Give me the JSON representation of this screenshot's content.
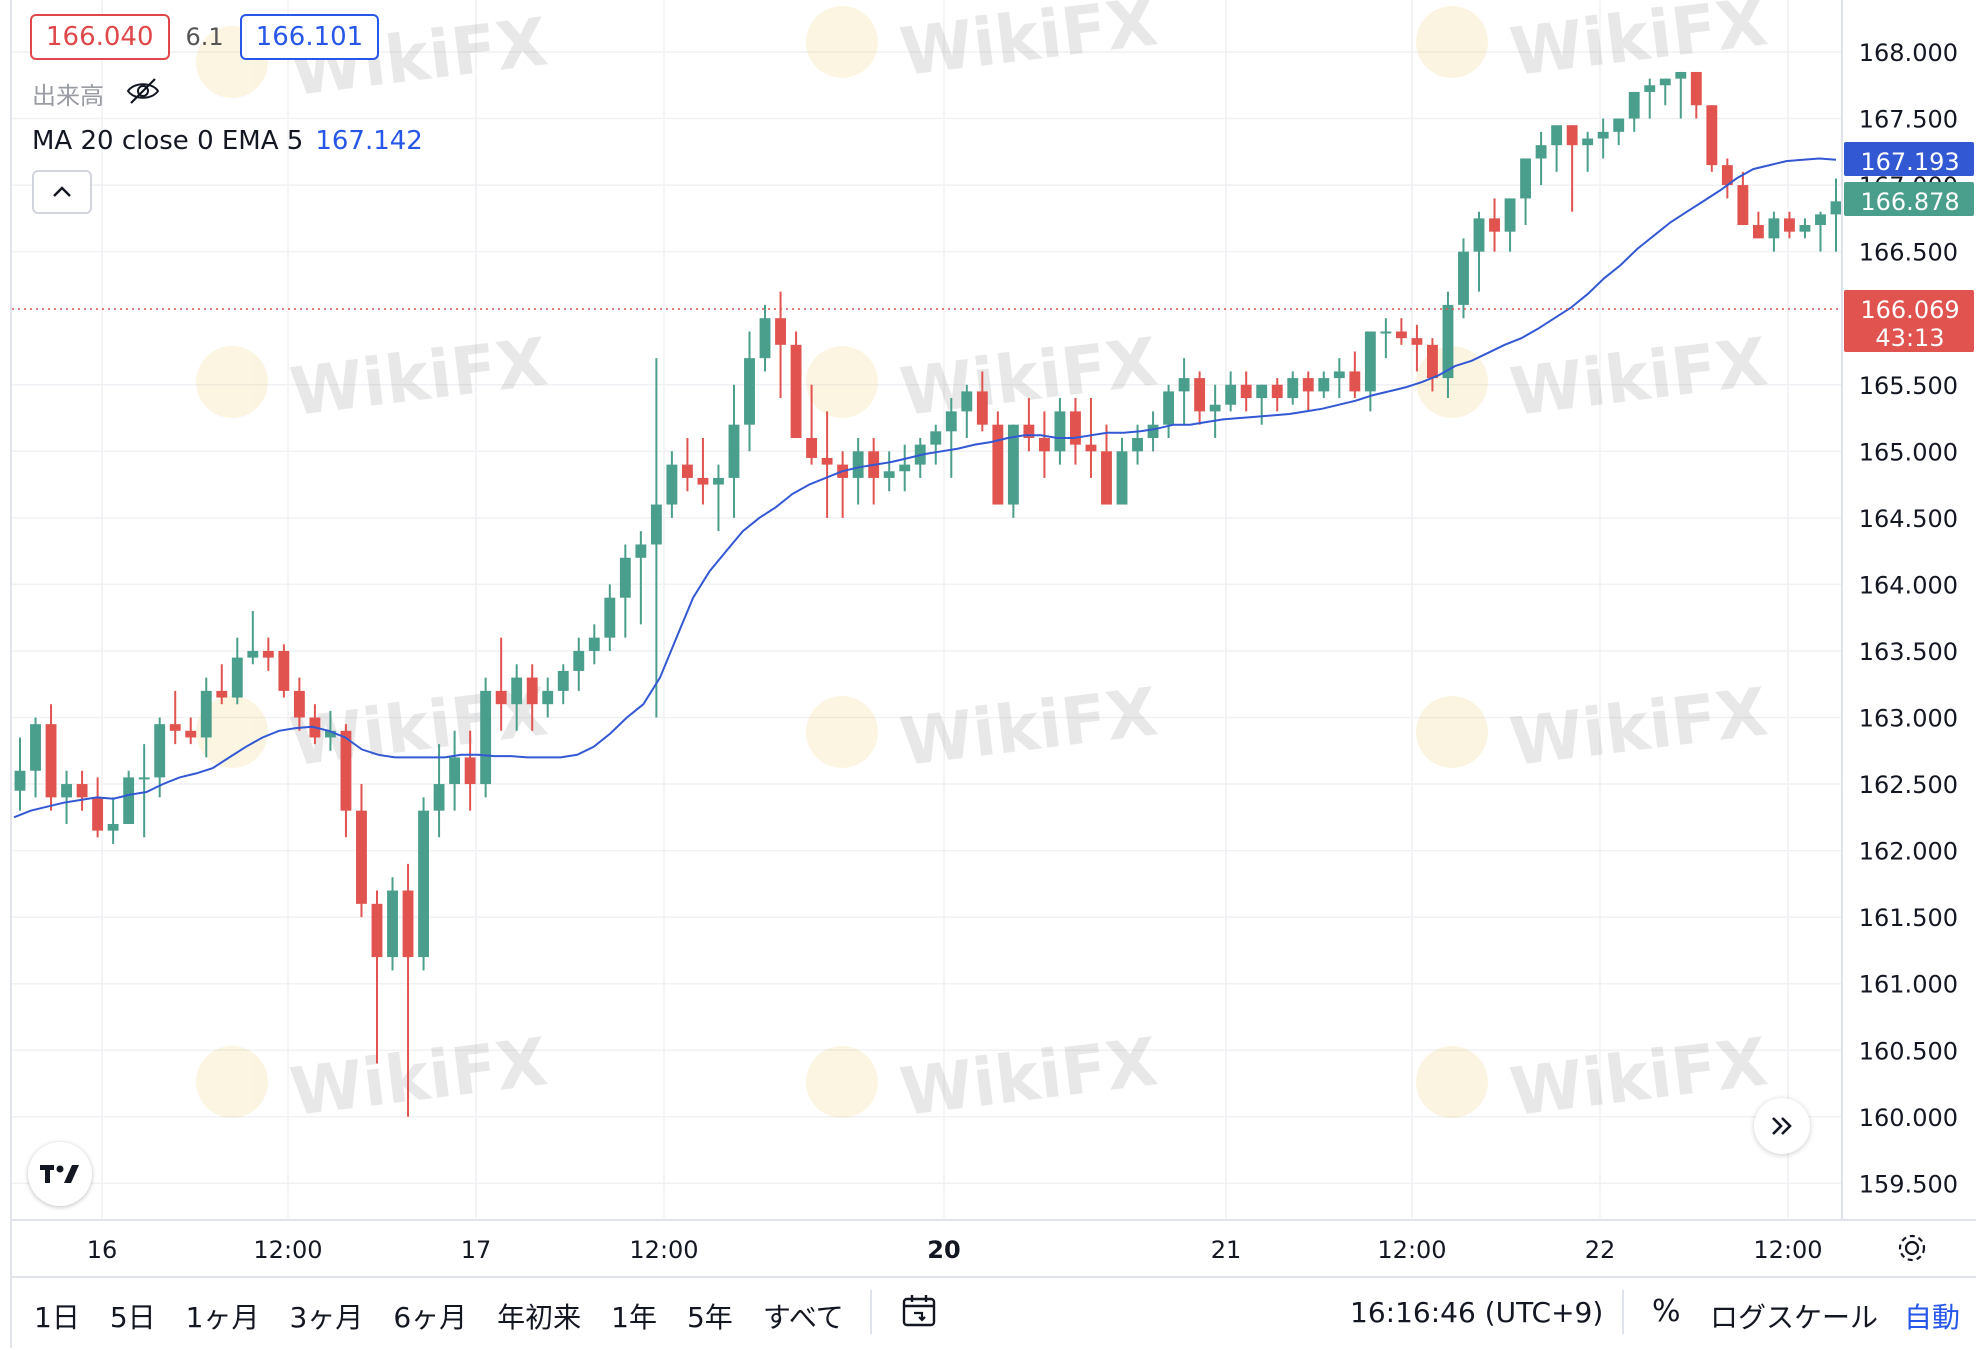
{
  "header": {
    "sell_price": "166.040",
    "spread": "6.1",
    "buy_price": "166.101",
    "volume_label": "出来高",
    "ma_label": "MA 20 close 0 EMA 5",
    "ma_value": "167.142"
  },
  "watermark": "WikiFX",
  "price_tags": {
    "ma": "167.193",
    "last": "166.878",
    "current": "166.069",
    "countdown": "43:13"
  },
  "colors": {
    "up": "#4a9e8c",
    "down": "#e0534f",
    "ma_line": "#3358d4",
    "current_line": "#e0534f",
    "ma_tag": "#3358d4",
    "last_tag": "#4a9e8c",
    "current_tag": "#e0534f"
  },
  "bottom_bar": {
    "ranges": [
      "1日",
      "5日",
      "1ヶ月",
      "3ヶ月",
      "6ヶ月",
      "年初来",
      "1年",
      "5年",
      "すべて"
    ],
    "clock": "16:16:46 (UTC+9)",
    "percent": "%",
    "log_scale": "ログスケール",
    "auto": "自動"
  },
  "chart_data": {
    "type": "candlestick",
    "ylim": [
      159.3,
      168.3
    ],
    "y_ticks": [
      "168.000",
      "167.500",
      "167.000",
      "166.500",
      "165.500",
      "165.000",
      "164.500",
      "164.000",
      "163.500",
      "163.000",
      "162.500",
      "162.000",
      "161.500",
      "161.000",
      "160.500",
      "160.000",
      "159.500"
    ],
    "x_ticks": [
      {
        "label": "16",
        "bold": false
      },
      {
        "label": "12:00",
        "bold": false
      },
      {
        "label": "17",
        "bold": false
      },
      {
        "label": "12:00",
        "bold": false
      },
      {
        "label": "20",
        "bold": true
      },
      {
        "label": "21",
        "bold": false
      },
      {
        "label": "12:00",
        "bold": false
      },
      {
        "label": "22",
        "bold": false
      },
      {
        "label": "12:00",
        "bold": false
      }
    ],
    "current_price": 166.069,
    "candles": [
      [
        162.45,
        162.85,
        162.3,
        162.6
      ],
      [
        162.6,
        163.0,
        162.4,
        162.95
      ],
      [
        162.95,
        163.1,
        162.3,
        162.4
      ],
      [
        162.4,
        162.6,
        162.2,
        162.5
      ],
      [
        162.5,
        162.6,
        162.3,
        162.4
      ],
      [
        162.4,
        162.55,
        162.1,
        162.15
      ],
      [
        162.15,
        162.4,
        162.05,
        162.2
      ],
      [
        162.2,
        162.6,
        162.2,
        162.55
      ],
      [
        162.55,
        162.8,
        162.1,
        162.55
      ],
      [
        162.55,
        163.0,
        162.4,
        162.95
      ],
      [
        162.95,
        163.2,
        162.8,
        162.9
      ],
      [
        162.9,
        163.0,
        162.8,
        162.85
      ],
      [
        162.85,
        163.3,
        162.7,
        163.2
      ],
      [
        163.2,
        163.4,
        163.1,
        163.15
      ],
      [
        163.15,
        163.6,
        163.1,
        163.45
      ],
      [
        163.45,
        163.8,
        163.4,
        163.5
      ],
      [
        163.5,
        163.6,
        163.35,
        163.45
      ],
      [
        163.5,
        163.55,
        163.15,
        163.2
      ],
      [
        163.2,
        163.3,
        162.9,
        163.0
      ],
      [
        163.0,
        163.1,
        162.8,
        162.85
      ],
      [
        162.85,
        163.05,
        162.75,
        162.9
      ],
      [
        162.9,
        162.95,
        162.1,
        162.3
      ],
      [
        162.3,
        162.5,
        161.5,
        161.6
      ],
      [
        161.6,
        161.7,
        160.4,
        161.2
      ],
      [
        161.2,
        161.8,
        161.1,
        161.7
      ],
      [
        161.7,
        161.9,
        160.0,
        161.2
      ],
      [
        161.2,
        162.4,
        161.1,
        162.3
      ],
      [
        162.3,
        162.8,
        162.1,
        162.5
      ],
      [
        162.5,
        162.9,
        162.3,
        162.7
      ],
      [
        162.7,
        162.9,
        162.3,
        162.5
      ],
      [
        162.5,
        163.3,
        162.4,
        163.2
      ],
      [
        163.2,
        163.6,
        162.9,
        163.1
      ],
      [
        163.1,
        163.4,
        162.9,
        163.3
      ],
      [
        163.3,
        163.4,
        162.9,
        163.1
      ],
      [
        163.1,
        163.3,
        163.0,
        163.2
      ],
      [
        163.2,
        163.4,
        163.1,
        163.35
      ],
      [
        163.35,
        163.6,
        163.2,
        163.5
      ],
      [
        163.5,
        163.7,
        163.4,
        163.6
      ],
      [
        163.6,
        164.0,
        163.5,
        163.9
      ],
      [
        163.9,
        164.3,
        163.6,
        164.2
      ],
      [
        164.2,
        164.4,
        163.7,
        164.3
      ],
      [
        164.3,
        165.7,
        163.0,
        164.6
      ],
      [
        164.6,
        165.0,
        164.5,
        164.9
      ],
      [
        164.9,
        165.1,
        164.7,
        164.8
      ],
      [
        164.8,
        165.1,
        164.6,
        164.75
      ],
      [
        164.75,
        164.9,
        164.4,
        164.8
      ],
      [
        164.8,
        165.5,
        164.5,
        165.2
      ],
      [
        165.2,
        165.9,
        165.0,
        165.7
      ],
      [
        165.7,
        166.1,
        165.6,
        166.0
      ],
      [
        166.0,
        166.2,
        165.4,
        165.8
      ],
      [
        165.8,
        165.9,
        165.1,
        165.1
      ],
      [
        165.1,
        165.5,
        164.9,
        164.95
      ],
      [
        164.95,
        165.3,
        164.5,
        164.9
      ],
      [
        164.9,
        165.0,
        164.5,
        164.8
      ],
      [
        164.8,
        165.1,
        164.6,
        165.0
      ],
      [
        165.0,
        165.1,
        164.6,
        164.8
      ],
      [
        164.8,
        165.0,
        164.7,
        164.85
      ],
      [
        164.85,
        165.05,
        164.7,
        164.9
      ],
      [
        164.9,
        165.1,
        164.8,
        165.05
      ],
      [
        165.05,
        165.2,
        164.9,
        165.15
      ],
      [
        165.15,
        165.4,
        164.8,
        165.3
      ],
      [
        165.3,
        165.5,
        165.1,
        165.45
      ],
      [
        165.45,
        165.6,
        165.15,
        165.2
      ],
      [
        165.2,
        165.3,
        164.6,
        164.6
      ],
      [
        164.6,
        165.2,
        164.5,
        165.2
      ],
      [
        165.2,
        165.4,
        165.0,
        165.1
      ],
      [
        165.1,
        165.3,
        164.8,
        165.0
      ],
      [
        165.0,
        165.4,
        164.9,
        165.3
      ],
      [
        165.3,
        165.4,
        164.9,
        165.05
      ],
      [
        165.05,
        165.4,
        164.8,
        165.0
      ],
      [
        165.0,
        165.2,
        164.6,
        164.6
      ],
      [
        164.6,
        165.1,
        164.6,
        165.0
      ],
      [
        165.0,
        165.2,
        164.9,
        165.1
      ],
      [
        165.1,
        165.3,
        165.0,
        165.2
      ],
      [
        165.2,
        165.5,
        165.1,
        165.45
      ],
      [
        165.45,
        165.7,
        165.2,
        165.55
      ],
      [
        165.55,
        165.6,
        165.2,
        165.3
      ],
      [
        165.3,
        165.5,
        165.1,
        165.35
      ],
      [
        165.35,
        165.6,
        165.3,
        165.5
      ],
      [
        165.5,
        165.6,
        165.3,
        165.4
      ],
      [
        165.4,
        165.5,
        165.2,
        165.5
      ],
      [
        165.5,
        165.55,
        165.3,
        165.4
      ],
      [
        165.4,
        165.6,
        165.35,
        165.55
      ],
      [
        165.55,
        165.6,
        165.3,
        165.45
      ],
      [
        165.45,
        165.6,
        165.4,
        165.55
      ],
      [
        165.55,
        165.7,
        165.4,
        165.6
      ],
      [
        165.6,
        165.75,
        165.4,
        165.45
      ],
      [
        165.45,
        165.9,
        165.3,
        165.9
      ],
      [
        165.9,
        166.0,
        165.7,
        165.9
      ],
      [
        165.9,
        166.0,
        165.8,
        165.85
      ],
      [
        165.85,
        165.95,
        165.6,
        165.8
      ],
      [
        165.8,
        165.85,
        165.45,
        165.55
      ],
      [
        165.55,
        166.2,
        165.4,
        166.1
      ],
      [
        166.1,
        166.6,
        166.0,
        166.5
      ],
      [
        166.5,
        166.8,
        166.2,
        166.75
      ],
      [
        166.75,
        166.9,
        166.5,
        166.65
      ],
      [
        166.65,
        166.9,
        166.5,
        166.9
      ],
      [
        166.9,
        167.2,
        166.7,
        167.2
      ],
      [
        167.2,
        167.4,
        167.0,
        167.3
      ],
      [
        167.3,
        167.4,
        167.1,
        167.45
      ],
      [
        167.45,
        167.45,
        166.8,
        167.3
      ],
      [
        167.3,
        167.4,
        167.1,
        167.35
      ],
      [
        167.35,
        167.5,
        167.2,
        167.4
      ],
      [
        167.4,
        167.5,
        167.3,
        167.5
      ],
      [
        167.5,
        167.7,
        167.4,
        167.7
      ],
      [
        167.7,
        167.8,
        167.5,
        167.75
      ],
      [
        167.75,
        167.8,
        167.6,
        167.8
      ],
      [
        167.8,
        167.85,
        167.5,
        167.85
      ],
      [
        167.85,
        167.85,
        167.5,
        167.6
      ],
      [
        167.6,
        167.6,
        167.1,
        167.15
      ],
      [
        167.15,
        167.2,
        166.9,
        167.0
      ],
      [
        167.0,
        167.1,
        166.7,
        166.7
      ],
      [
        166.7,
        166.8,
        166.6,
        166.6
      ],
      [
        166.6,
        166.8,
        166.5,
        166.75
      ],
      [
        166.75,
        166.8,
        166.6,
        166.65
      ],
      [
        166.65,
        166.75,
        166.6,
        166.7
      ],
      [
        166.7,
        166.8,
        166.5,
        166.78
      ],
      [
        166.78,
        167.05,
        166.5,
        166.878
      ]
    ],
    "ma_line": [
      162.25,
      162.3,
      162.33,
      162.36,
      162.38,
      162.4,
      162.39,
      162.42,
      162.44,
      162.5,
      162.55,
      162.58,
      162.62,
      162.7,
      162.78,
      162.85,
      162.9,
      162.92,
      162.93,
      162.9,
      162.85,
      162.76,
      162.72,
      162.7,
      162.7,
      162.7,
      162.7,
      162.72,
      162.72,
      162.71,
      162.71,
      162.7,
      162.7,
      162.7,
      162.72,
      162.78,
      162.88,
      163.0,
      163.1,
      163.3,
      163.6,
      163.9,
      164.1,
      164.25,
      164.4,
      164.5,
      164.58,
      164.68,
      164.75,
      164.8,
      164.85,
      164.88,
      164.9,
      164.92,
      164.95,
      164.98,
      165.0,
      165.02,
      165.05,
      165.07,
      165.1,
      165.12,
      165.12,
      165.1,
      165.1,
      165.12,
      165.14,
      165.14,
      165.15,
      165.17,
      165.2,
      165.2,
      165.22,
      165.24,
      165.25,
      165.26,
      165.27,
      165.28,
      165.3,
      165.32,
      165.35,
      165.38,
      165.42,
      165.45,
      165.48,
      165.52,
      165.57,
      165.64,
      165.68,
      165.74,
      165.8,
      165.85,
      165.92,
      166.0,
      166.08,
      166.18,
      166.3,
      166.4,
      166.52,
      166.62,
      166.72,
      166.8,
      166.88,
      166.96,
      167.05,
      167.12,
      167.15,
      167.18,
      167.19,
      167.2,
      167.19
    ]
  }
}
